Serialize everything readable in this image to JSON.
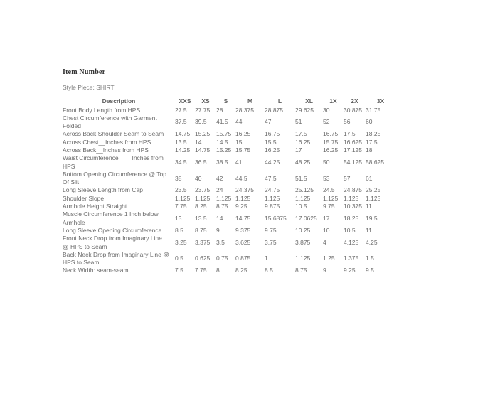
{
  "page": {
    "item_number_label": "Item Number",
    "style_piece_label": "Style Piece: SHIRT"
  },
  "table": {
    "columns": [
      "Description",
      "XXS",
      "XS",
      "S",
      "M",
      "L",
      "XL",
      "1X",
      "2X",
      "3X"
    ],
    "rows": [
      {
        "description": "Front Body Length from HPS",
        "values": [
          "27.5",
          "27.75",
          "28",
          "28.375",
          "28.875",
          "29.625",
          "30",
          "30.875",
          "31.75"
        ]
      },
      {
        "description": "Chest Circumference with Garment Folded",
        "values": [
          "37.5",
          "39.5",
          "41.5",
          "44",
          "47",
          "51",
          "52",
          "56",
          "60"
        ]
      },
      {
        "description": "Across Back Shoulder Seam to Seam",
        "values": [
          "14.75",
          "15.25",
          "15.75",
          "16.25",
          "16.75",
          "17.5",
          "16.75",
          "17.5",
          "18.25"
        ]
      },
      {
        "description": "Across Chest__Inches from HPS",
        "values": [
          "13.5",
          "14",
          "14.5",
          "15",
          "15.5",
          "16.25",
          "15.75",
          "16.625",
          "17.5"
        ]
      },
      {
        "description": "Across Back__Inches from HPS",
        "values": [
          "14.25",
          "14.75",
          "15.25",
          "15.75",
          "16.25",
          "17",
          "16.25",
          "17.125",
          "18"
        ]
      },
      {
        "description": "Waist Circumference ___ Inches from HPS",
        "values": [
          "34.5",
          "36.5",
          "38.5",
          "41",
          "44.25",
          "48.25",
          "50",
          "54.125",
          "58.625"
        ]
      },
      {
        "description": "Bottom Opening Circumference @ Top Of Slit",
        "values": [
          "38",
          "40",
          "42",
          "44.5",
          "47.5",
          "51.5",
          "53",
          "57",
          "61"
        ]
      },
      {
        "description": "Long Sleeve Length from Cap",
        "values": [
          "23.5",
          "23.75",
          "24",
          "24.375",
          "24.75",
          "25.125",
          "24.5",
          "24.875",
          "25.25"
        ]
      },
      {
        "description": "Shoulder Slope",
        "values": [
          "1.125",
          "1.125",
          "1.125",
          "1.125",
          "1.125",
          "1.125",
          "1.125",
          "1.125",
          "1.125"
        ]
      },
      {
        "description": "Armhole Height Straight",
        "values": [
          "7.75",
          "8.25",
          "8.75",
          "9.25",
          "9.875",
          "10.5",
          "9.75",
          "10.375",
          "11"
        ]
      },
      {
        "description": "Muscle Circumference 1 Inch below Armhole",
        "values": [
          "13",
          "13.5",
          "14",
          "14.75",
          "15.6875",
          "17.0625",
          "17",
          "18.25",
          "19.5"
        ]
      },
      {
        "description": "Long Sleeve Opening Circumference",
        "values": [
          "8.5",
          "8.75",
          "9",
          "9.375",
          "9.75",
          "10.25",
          "10",
          "10.5",
          "11"
        ]
      },
      {
        "description": "Front Neck Drop from Imaginary Line @ HPS to Seam",
        "values": [
          "3.25",
          "3.375",
          "3.5",
          "3.625",
          "3.75",
          "3.875",
          "4",
          "4.125",
          "4.25"
        ]
      },
      {
        "description": "Back Neck Drop from Imaginary Line @ HPS to Seam",
        "values": [
          "0.5",
          "0.625",
          "0.75",
          "0.875",
          "1",
          "1.125",
          "1.25",
          "1.375",
          "1.5"
        ]
      },
      {
        "description": "Neck Width: seam-seam",
        "values": [
          "7.5",
          "7.75",
          "8",
          "8.25",
          "8.5",
          "8.75",
          "9",
          "9.25",
          "9.5"
        ]
      }
    ]
  }
}
